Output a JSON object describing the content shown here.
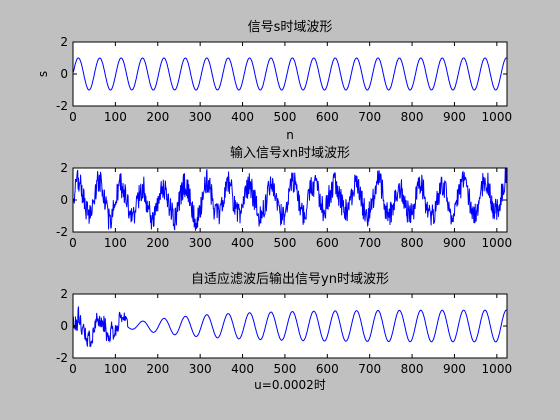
{
  "figure": {
    "background": "#c0c0c0",
    "axes_background": "#ffffff",
    "line_color": "#0000ff"
  },
  "chart_data": [
    {
      "type": "line",
      "title": "信号s时域波形",
      "xlabel": "n",
      "ylabel": "s",
      "xlim": [
        0,
        1024
      ],
      "ylim": [
        -2,
        2
      ],
      "xticks": [
        0,
        100,
        200,
        300,
        400,
        500,
        600,
        700,
        800,
        900,
        1000
      ],
      "yticks": [
        -2,
        0,
        2
      ],
      "series": [
        {
          "kind": "sine",
          "x_start": 1,
          "x_end": 1024,
          "amplitude": 1,
          "period": 50.5,
          "phase": 0,
          "color": "#0000ff"
        }
      ]
    },
    {
      "type": "line",
      "title": "输入信号xn时域波形",
      "xlabel": "",
      "ylabel": "",
      "xlim": [
        0,
        1024
      ],
      "ylim": [
        -2,
        2
      ],
      "xticks": [
        0,
        100,
        200,
        300,
        400,
        500,
        600,
        700,
        800,
        900,
        1000
      ],
      "yticks": [
        -2,
        0,
        2
      ],
      "series": [
        {
          "kind": "noisy_sine",
          "x_start": 1,
          "x_end": 1024,
          "amplitude": 1,
          "period": 50.5,
          "noise_amplitude": 0.75,
          "color": "#0000ff"
        }
      ]
    },
    {
      "type": "line",
      "title": "自适应滤波后输出信号yn时域波形",
      "xlabel": "u=0.0002时",
      "ylabel": "",
      "xlim": [
        0,
        1024
      ],
      "ylim": [
        -2,
        2
      ],
      "xticks": [
        0,
        100,
        200,
        300,
        400,
        500,
        600,
        700,
        800,
        900,
        1000
      ],
      "yticks": [
        -2,
        0,
        2
      ],
      "series": [
        {
          "kind": "adaptive_output",
          "x_start": 1,
          "x_end": 1024,
          "transient_end": 128,
          "transient_amplitude": 1.5,
          "final_amplitude": 1,
          "initial_amplitude": 0.15,
          "period": 50.5,
          "color": "#0000ff"
        }
      ]
    }
  ]
}
